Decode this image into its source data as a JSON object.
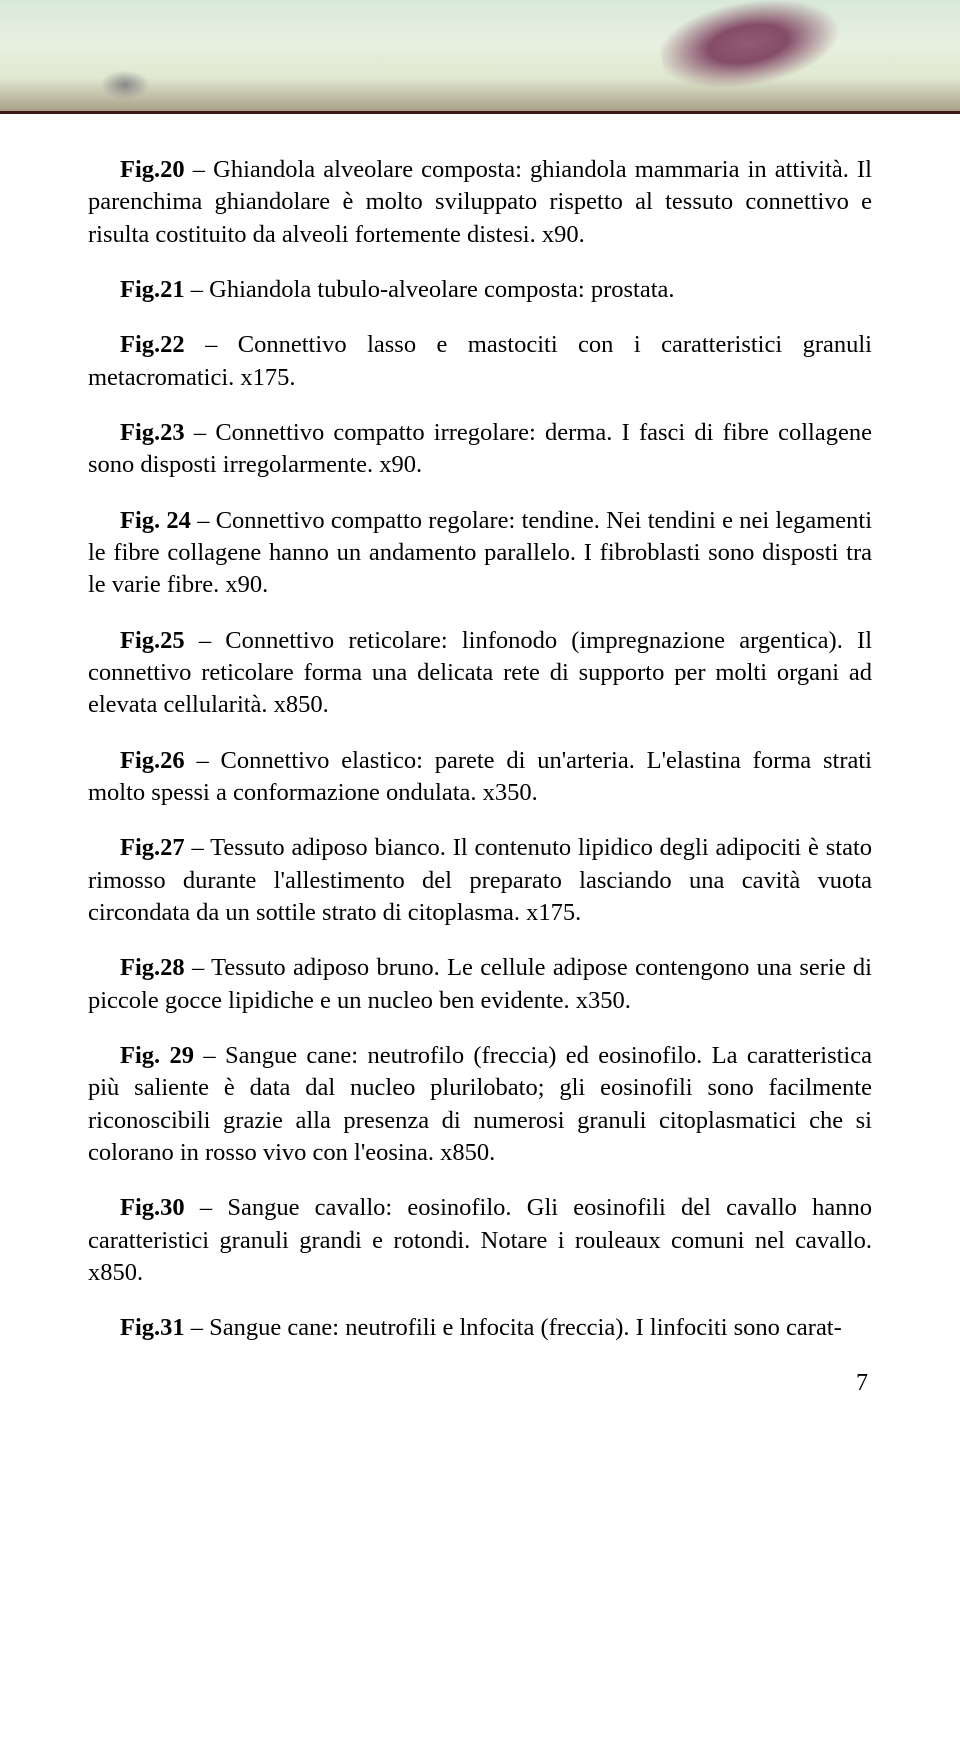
{
  "page_number": "7",
  "entries": [
    {
      "label": "Fig.20",
      "text": " – Ghiandola alveolare composta: ghiandola mammaria in attività. Il parenchima ghiandolare è molto sviluppato rispetto al tessuto connettivo e risulta costituito da alveoli fortemente distesi. x90."
    },
    {
      "label": "Fig.21",
      "text": " – Ghiandola tubulo-alveolare composta: prostata."
    },
    {
      "label": "Fig.22",
      "text": " – Connettivo lasso e mastociti con i caratteristici granuli metacromatici. x175."
    },
    {
      "label": "Fig.23",
      "text": " – Connettivo compatto irregolare: derma. I fasci di fibre collagene sono disposti irregolarmente. x90."
    },
    {
      "label": "Fig. 24",
      "text": " – Connettivo compatto regolare: tendine. Nei tendini e nei legamenti le fibre collagene hanno un andamento parallelo. I fibroblasti sono disposti tra le varie fibre. x90."
    },
    {
      "label": "Fig.25",
      "text": " – Connettivo reticolare: linfonodo (impregnazione argentica). Il connettivo reticolare forma una delicata rete di supporto per molti organi ad elevata cellularità. x850."
    },
    {
      "label": "Fig.26",
      "text": " – Connettivo elastico: parete di un'arteria. L'elastina forma strati molto spessi a conformazione ondulata. x350."
    },
    {
      "label": "Fig.27",
      "text": " – Tessuto adiposo bianco. Il contenuto lipidico degli adipociti è stato rimosso durante l'allestimento del preparato lasciando una cavità vuota circondata da un sottile strato di citoplasma. x175."
    },
    {
      "label": "Fig.28",
      "text": " – Tessuto adiposo bruno. Le cellule adipose contengono una serie di piccole gocce lipidiche e un nucleo ben evidente. x350."
    },
    {
      "label": "Fig. 29",
      "text": " – Sangue cane: neutrofilo (freccia) ed eosinofilo. La caratteristica più saliente è data dal nucleo plurilobato; gli eosinofili sono facilmente riconoscibili grazie alla presenza di numerosi granuli citoplasmatici che si colorano in rosso vivo con l'eosina. x850."
    },
    {
      "label": "Fig.30",
      "text": " – Sangue cavallo: eosinofilo. Gli eosinofili del cavallo hanno caratteristici granuli grandi e rotondi. Notare i rouleaux comuni nel cavallo. x850."
    },
    {
      "label": "Fig.31",
      "text": " – Sangue cane: neutrofili e lnfocita (freccia). I linfociti sono carat-"
    }
  ]
}
